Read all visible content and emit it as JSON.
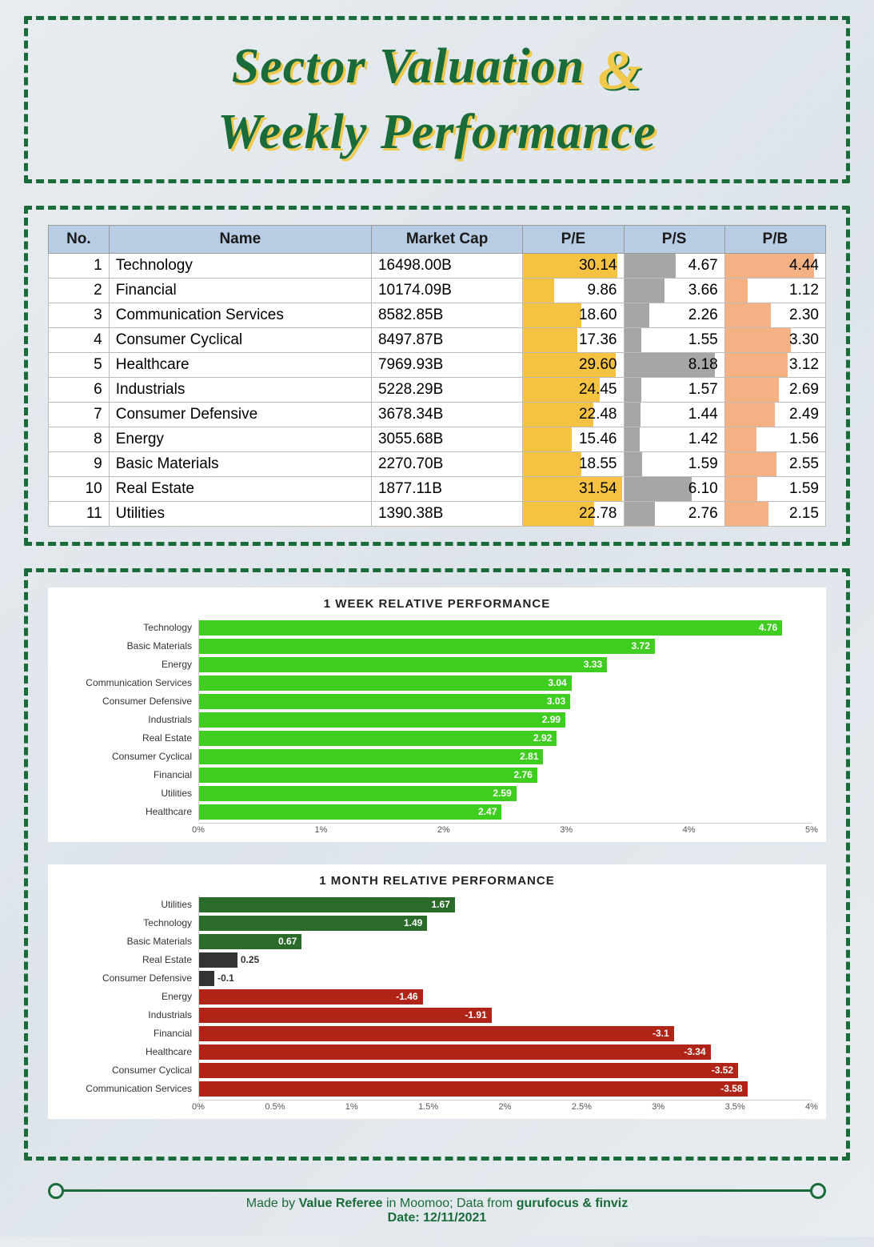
{
  "title": {
    "line1": "Sector Valuation",
    "amp": "&",
    "line2": "Weekly Performance",
    "color": "#1a6b3a",
    "shadow_color": "#f0c94a",
    "fontsize": 62
  },
  "border_color": "#1a6b3a",
  "background_gradient": [
    "#e8ecf0",
    "#dde4ea",
    "#e8ecf0"
  ],
  "valuation_table": {
    "type": "table",
    "header_bg": "#b8cce4",
    "columns": [
      "No.",
      "Name",
      "Market Cap",
      "P/E",
      "P/S",
      "P/B"
    ],
    "pe_fill_color": "#f5c242",
    "ps_fill_color": "#a6a6a6",
    "pb_fill_color": "#f4b183",
    "pe_max": 32,
    "ps_max": 9,
    "pb_max": 5,
    "rows": [
      {
        "no": 1,
        "name": "Technology",
        "mcap": "16498.00B",
        "pe": 30.14,
        "ps": 4.67,
        "pb": 4.44
      },
      {
        "no": 2,
        "name": "Financial",
        "mcap": "10174.09B",
        "pe": 9.86,
        "ps": 3.66,
        "pb": 1.12
      },
      {
        "no": 3,
        "name": "Communication Services",
        "mcap": "8582.85B",
        "pe": 18.6,
        "ps": 2.26,
        "pb": 2.3
      },
      {
        "no": 4,
        "name": "Consumer Cyclical",
        "mcap": "8497.87B",
        "pe": 17.36,
        "ps": 1.55,
        "pb": 3.3
      },
      {
        "no": 5,
        "name": "Healthcare",
        "mcap": "7969.93B",
        "pe": 29.6,
        "ps": 8.18,
        "pb": 3.12
      },
      {
        "no": 6,
        "name": "Industrials",
        "mcap": "5228.29B",
        "pe": 24.45,
        "ps": 1.57,
        "pb": 2.69
      },
      {
        "no": 7,
        "name": "Consumer Defensive",
        "mcap": "3678.34B",
        "pe": 22.48,
        "ps": 1.44,
        "pb": 2.49
      },
      {
        "no": 8,
        "name": "Energy",
        "mcap": "3055.68B",
        "pe": 15.46,
        "ps": 1.42,
        "pb": 1.56
      },
      {
        "no": 9,
        "name": "Basic Materials",
        "mcap": "2270.70B",
        "pe": 18.55,
        "ps": 1.59,
        "pb": 2.55
      },
      {
        "no": 10,
        "name": "Real Estate",
        "mcap": "1877.11B",
        "pe": 31.54,
        "ps": 6.1,
        "pb": 1.59
      },
      {
        "no": 11,
        "name": "Utilities",
        "mcap": "1390.38B",
        "pe": 22.78,
        "ps": 2.76,
        "pb": 2.15
      }
    ]
  },
  "week_chart": {
    "type": "bar",
    "title": "1 WEEK RELATIVE PERFORMANCE",
    "bar_color": "#3fce1f",
    "xmax": 5,
    "xticks": [
      "0%",
      "1%",
      "2%",
      "3%",
      "4%",
      "5%"
    ],
    "data": [
      {
        "label": "Technology",
        "value": 4.76
      },
      {
        "label": "Basic Materials",
        "value": 3.72
      },
      {
        "label": "Energy",
        "value": 3.33
      },
      {
        "label": "Communication Services",
        "value": 3.04
      },
      {
        "label": "Consumer Defensive",
        "value": 3.03
      },
      {
        "label": "Industrials",
        "value": 2.99
      },
      {
        "label": "Real Estate",
        "value": 2.92
      },
      {
        "label": "Consumer Cyclical",
        "value": 2.81
      },
      {
        "label": "Financial",
        "value": 2.76
      },
      {
        "label": "Utilities",
        "value": 2.59
      },
      {
        "label": "Healthcare",
        "value": 2.47
      }
    ]
  },
  "month_chart": {
    "type": "bar",
    "title": "1 MONTH RELATIVE PERFORMANCE",
    "pos_color": "#2a6b2a",
    "neg_color": "#b02418",
    "small_color": "#333333",
    "xmax": 4,
    "xticks": [
      "0%",
      "0.5%",
      "1%",
      "1.5%",
      "2%",
      "2.5%",
      "3%",
      "3.5%",
      "4%"
    ],
    "data": [
      {
        "label": "Utilities",
        "value": 1.67
      },
      {
        "label": "Technology",
        "value": 1.49
      },
      {
        "label": "Basic Materials",
        "value": 0.67
      },
      {
        "label": "Real Estate",
        "value": 0.25
      },
      {
        "label": "Consumer Defensive",
        "value": -0.1
      },
      {
        "label": "Energy",
        "value": -1.46
      },
      {
        "label": "Industrials",
        "value": -1.91
      },
      {
        "label": "Financial",
        "value": -3.1
      },
      {
        "label": "Healthcare",
        "value": -3.34
      },
      {
        "label": "Consumer Cyclical",
        "value": -3.52
      },
      {
        "label": "Communication Services",
        "value": -3.58
      }
    ]
  },
  "footer": {
    "prefix": "Made by ",
    "author": "Value Referee",
    "mid": " in Moomoo; Data from ",
    "sources": "gurufocus & finviz",
    "date_label": "Date: ",
    "date": "12/11/2021",
    "color": "#1a6b3a"
  }
}
